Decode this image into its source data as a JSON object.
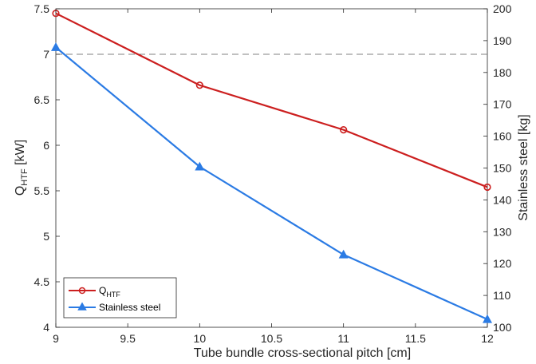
{
  "chart_data": {
    "type": "line",
    "x": [
      9,
      10,
      11,
      12
    ],
    "xlabel": "Tube bundle cross-sectional pitch  [cm]",
    "xlim": [
      9,
      12
    ],
    "xticks": [
      "9",
      "9.5",
      "10",
      "10.5",
      "11",
      "11.5",
      "12"
    ],
    "ylabel_left": {
      "main": "Q",
      "sub": "HTF",
      "unit": "  [kW]"
    },
    "ylim_left": [
      4,
      7.5
    ],
    "yticks_left": [
      "4",
      "4.5",
      "5",
      "5.5",
      "6",
      "6.5",
      "7",
      "7.5"
    ],
    "ylabel_right": "Stainless steel  [kg]",
    "ylim_right": [
      100,
      200
    ],
    "yticks_right": [
      "100",
      "110",
      "120",
      "130",
      "140",
      "150",
      "160",
      "170",
      "180",
      "190",
      "200"
    ],
    "reference_line": {
      "axis": "left",
      "value": 7,
      "style": "dashed",
      "color": "#808080"
    },
    "grid": false,
    "legend_position": "bottom-left",
    "series": [
      {
        "name": "Q",
        "name_sub": "HTF",
        "axis": "left",
        "marker": "circle",
        "color": "#cc1f1f",
        "values": [
          7.45,
          6.66,
          6.17,
          5.54
        ]
      },
      {
        "name": "Stainless steel",
        "axis": "right",
        "marker": "triangle",
        "color": "#2b7be4",
        "values": [
          187.9,
          150.4,
          122.8,
          102.5
        ]
      }
    ]
  }
}
